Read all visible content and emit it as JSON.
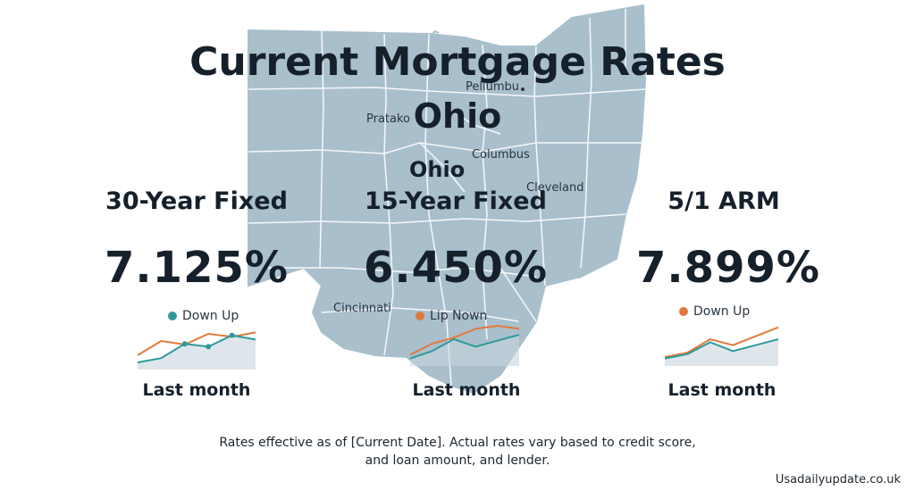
{
  "title": "Current Mortgage Rates",
  "state": "Ohio",
  "map_labels": {
    "top": "Pellumbu",
    "left": "Pratako",
    "state": "Ohio",
    "columbus": "Columbus",
    "cleveland": "Cleveland",
    "cincinnati": "Cincinnati"
  },
  "colors": {
    "map_fill": "#a9bfcc",
    "map_border": "#ffffff",
    "series_teal": "#2e9a9a",
    "series_orange": "#e07a3c",
    "text": "#15202b"
  },
  "products": [
    {
      "name": "30-Year Fixed",
      "rate": "7.125%",
      "legend": "Down Up",
      "legend_color": "teal",
      "footer": "Last month"
    },
    {
      "name": "15-Year Fixed",
      "rate": "6.450%",
      "legend": "Lip Nown",
      "legend_color": "orange",
      "footer": "Last month"
    },
    {
      "name": "5/1 ARM",
      "rate": "7.899%",
      "legend": "Down Up",
      "legend_color": "orange",
      "footer": "Last month"
    }
  ],
  "chart_data": [
    {
      "type": "line",
      "x": [
        0,
        1,
        2,
        3,
        4,
        5
      ],
      "series": [
        {
          "color": "#e07a3c",
          "values": [
            2,
            4,
            3.5,
            5,
            4.6,
            5.2
          ]
        },
        {
          "color": "#2e9a9a",
          "values": [
            1,
            1.6,
            3.6,
            3.2,
            4.8,
            4.2
          ]
        }
      ],
      "title": "",
      "xlabel": "Last month"
    },
    {
      "type": "line",
      "x": [
        0,
        1,
        2,
        3,
        4,
        5
      ],
      "series": [
        {
          "color": "#e07a3c",
          "values": [
            1.5,
            3,
            3.8,
            5,
            5.4,
            5
          ]
        },
        {
          "color": "#2e9a9a",
          "values": [
            1,
            2,
            3.6,
            2.6,
            3.4,
            4.2
          ]
        }
      ],
      "title": "",
      "xlabel": "Last month"
    },
    {
      "type": "line",
      "x": [
        0,
        1,
        2,
        3,
        4,
        5
      ],
      "series": [
        {
          "color": "#e07a3c",
          "values": [
            1.2,
            1.8,
            3.6,
            2.8,
            4.0,
            5.2
          ]
        },
        {
          "color": "#2e9a9a",
          "values": [
            1.0,
            1.6,
            3.2,
            2.0,
            2.8,
            3.6
          ]
        }
      ],
      "title": "",
      "xlabel": "Last month"
    }
  ],
  "disclaimer_line1": "Rates effective as of [Current Date]. Actual rates vary based to credit score,",
  "disclaimer_line2": "and loan amount, and lender.",
  "source": "Usadailyupdate.co.uk"
}
